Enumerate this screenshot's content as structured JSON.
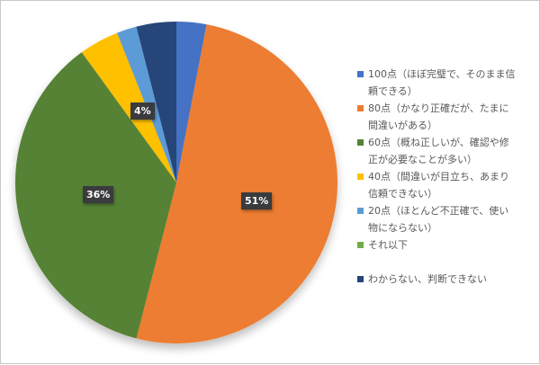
{
  "chart_data": {
    "type": "pie",
    "title": "",
    "start_angle_deg": 0,
    "direction": "clockwise",
    "categories": [
      "100点（ほぼ完璧で、そのまま信頼できる）",
      "80点（かなり正確だが、たまに間違いがある）",
      "60点（概ね正しいが、確認や修正が必要なことが多い）",
      "40点（間違いが目立ち、あまり信頼できない）",
      "20点（ほとんど不正確で、使い物にならない）",
      "それ以下",
      "わからない、判断できない"
    ],
    "values": [
      3,
      51,
      36,
      4,
      2,
      0,
      4
    ],
    "colors": [
      "#4472c4",
      "#ed7d31",
      "#548235",
      "#ffc000",
      "#5b9bd5",
      "#70ad47",
      "#264478"
    ],
    "data_labels": [
      {
        "category_index": 1,
        "text": "51%"
      },
      {
        "category_index": 2,
        "text": "36%"
      },
      {
        "category_index": 3,
        "text": "4%"
      }
    ],
    "legend_position": "right"
  },
  "labels": {
    "l80": "51%",
    "l60": "36%",
    "l40": "4%"
  },
  "legend": {
    "items": [
      {
        "line1": "100点（ほぼ完璧で、そのまま信",
        "line2": "頼できる）",
        "color": "#4472c4"
      },
      {
        "line1": "80点（かなり正確だが、たまに",
        "line2": "間違いがある）",
        "color": "#ed7d31"
      },
      {
        "line1": "60点（概ね正しいが、確認や修",
        "line2": "正が必要なことが多い）",
        "color": "#548235"
      },
      {
        "line1": "40点（間違いが目立ち、あまり",
        "line2": "信頼できない）",
        "color": "#ffc000"
      },
      {
        "line1": "20点（ほとんど不正確で、使い",
        "line2": "物にならない）",
        "color": "#5b9bd5"
      },
      {
        "line1": "それ以下",
        "color": "#70ad47"
      },
      {
        "line1": "わからない、判断できない",
        "color": "#264478"
      }
    ]
  }
}
